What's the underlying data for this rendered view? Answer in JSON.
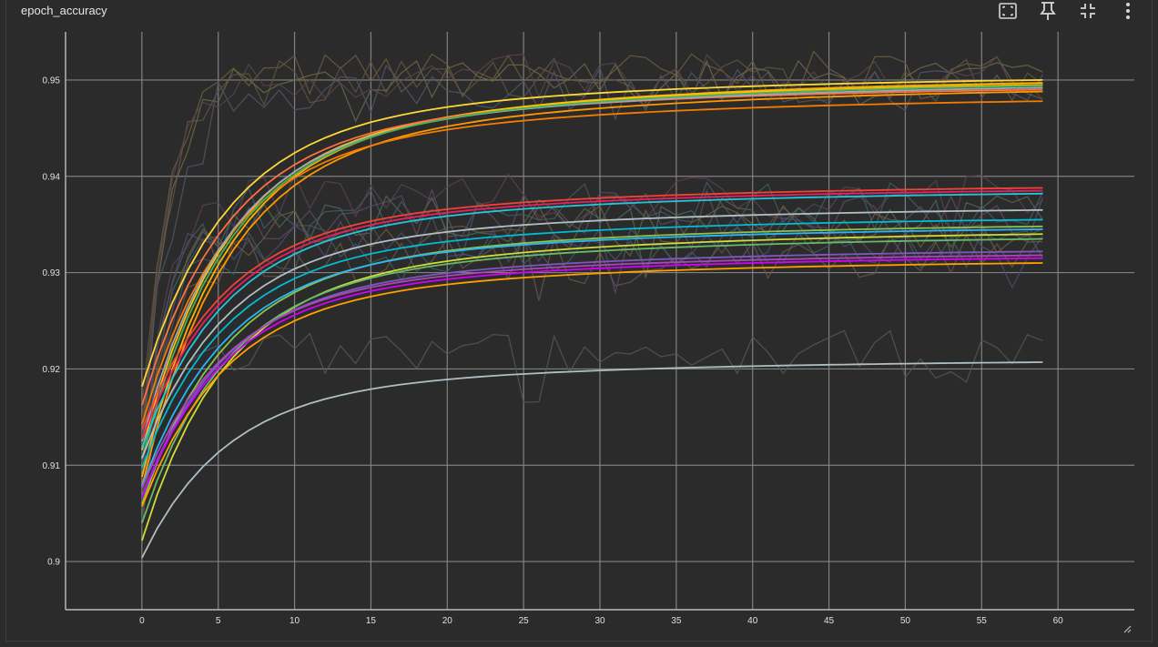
{
  "card": {
    "title": "epoch_accuracy"
  },
  "toolbar": {
    "icons": [
      "fit-domain-icon",
      "pin-icon",
      "collapse-icon",
      "more-vert-icon"
    ]
  },
  "colors": {
    "background": "#2b2b2b",
    "grid": "#8a8a8a",
    "axis_text": "#e0e0e0"
  },
  "chart_data": {
    "type": "line",
    "title": "",
    "xlabel": "",
    "ylabel": "",
    "xlim": [
      -5,
      65
    ],
    "ylim": [
      0.895,
      0.955
    ],
    "x_ticks": [
      0,
      5,
      10,
      15,
      20,
      25,
      30,
      35,
      40,
      45,
      50,
      55,
      60
    ],
    "y_ticks": [
      0.9,
      0.91,
      0.92,
      0.93,
      0.94,
      0.95
    ],
    "y_tick_labels": [
      "0.9",
      "0.91",
      "0.92",
      "0.93",
      "0.94",
      "0.95"
    ],
    "grid": true,
    "legend": "none",
    "epochs": 60,
    "series": [
      {
        "color": "#ffb300",
        "start": 0.906,
        "end": 0.9497
      },
      {
        "color": "#ffc107",
        "start": 0.909,
        "end": 0.9495
      },
      {
        "color": "#ff9800",
        "start": 0.905,
        "end": 0.9488
      },
      {
        "color": "#f57c00",
        "start": 0.912,
        "end": 0.9478
      },
      {
        "color": "#ff7043",
        "start": 0.914,
        "end": 0.949
      },
      {
        "color": "#9aa8b8",
        "start": 0.91,
        "end": 0.9492
      },
      {
        "color": "#4caf50",
        "start": 0.908,
        "end": 0.9494
      },
      {
        "color": "#fdd835",
        "start": 0.916,
        "end": 0.95
      },
      {
        "color": "#f44336",
        "start": 0.912,
        "end": 0.9388
      },
      {
        "color": "#e91e63",
        "start": 0.911,
        "end": 0.9385
      },
      {
        "color": "#26c6da",
        "start": 0.91,
        "end": 0.9382
      },
      {
        "color": "#b0bec5",
        "start": 0.909,
        "end": 0.9365
      },
      {
        "color": "#00bcd4",
        "start": 0.908,
        "end": 0.9355
      },
      {
        "color": "#8bc34a",
        "start": 0.904,
        "end": 0.9348
      },
      {
        "color": "#29b6f6",
        "start": 0.906,
        "end": 0.9345
      },
      {
        "color": "#cddc39",
        "start": 0.9,
        "end": 0.934
      },
      {
        "color": "#66bb6a",
        "start": 0.902,
        "end": 0.9335
      },
      {
        "color": "#7e57c2",
        "start": 0.905,
        "end": 0.9322
      },
      {
        "color": "#ab47bc",
        "start": 0.906,
        "end": 0.9318
      },
      {
        "color": "#d500f9",
        "start": 0.905,
        "end": 0.9315
      },
      {
        "color": "#ffa000",
        "start": 0.904,
        "end": 0.931
      },
      {
        "color": "#b0bec5",
        "start": 0.899,
        "end": 0.9207
      }
    ],
    "noisy_series": [
      {
        "color": "#6b5a3e",
        "start": 0.914,
        "level": 0.9505
      },
      {
        "color": "#5e5440",
        "start": 0.916,
        "level": 0.95
      },
      {
        "color": "#6a6648",
        "start": 0.912,
        "level": 0.9497
      },
      {
        "color": "#4d5566",
        "start": 0.91,
        "level": 0.9492
      },
      {
        "color": "#58434a",
        "start": 0.915,
        "level": 0.9502
      },
      {
        "color": "#5a4050",
        "start": 0.912,
        "level": 0.9378
      },
      {
        "color": "#3f5a66",
        "start": 0.91,
        "level": 0.937
      },
      {
        "color": "#5b4a63",
        "start": 0.909,
        "level": 0.9362
      },
      {
        "color": "#4d6552",
        "start": 0.908,
        "level": 0.9355
      },
      {
        "color": "#6b5a3e",
        "start": 0.906,
        "level": 0.9345
      },
      {
        "color": "#4f4a6b",
        "start": 0.905,
        "level": 0.9335
      },
      {
        "color": "#3e5b5b",
        "start": 0.906,
        "level": 0.9325
      },
      {
        "color": "#655545",
        "start": 0.904,
        "level": 0.9315
      },
      {
        "color": "#555555",
        "start": 0.91,
        "level": 0.9215
      }
    ]
  }
}
